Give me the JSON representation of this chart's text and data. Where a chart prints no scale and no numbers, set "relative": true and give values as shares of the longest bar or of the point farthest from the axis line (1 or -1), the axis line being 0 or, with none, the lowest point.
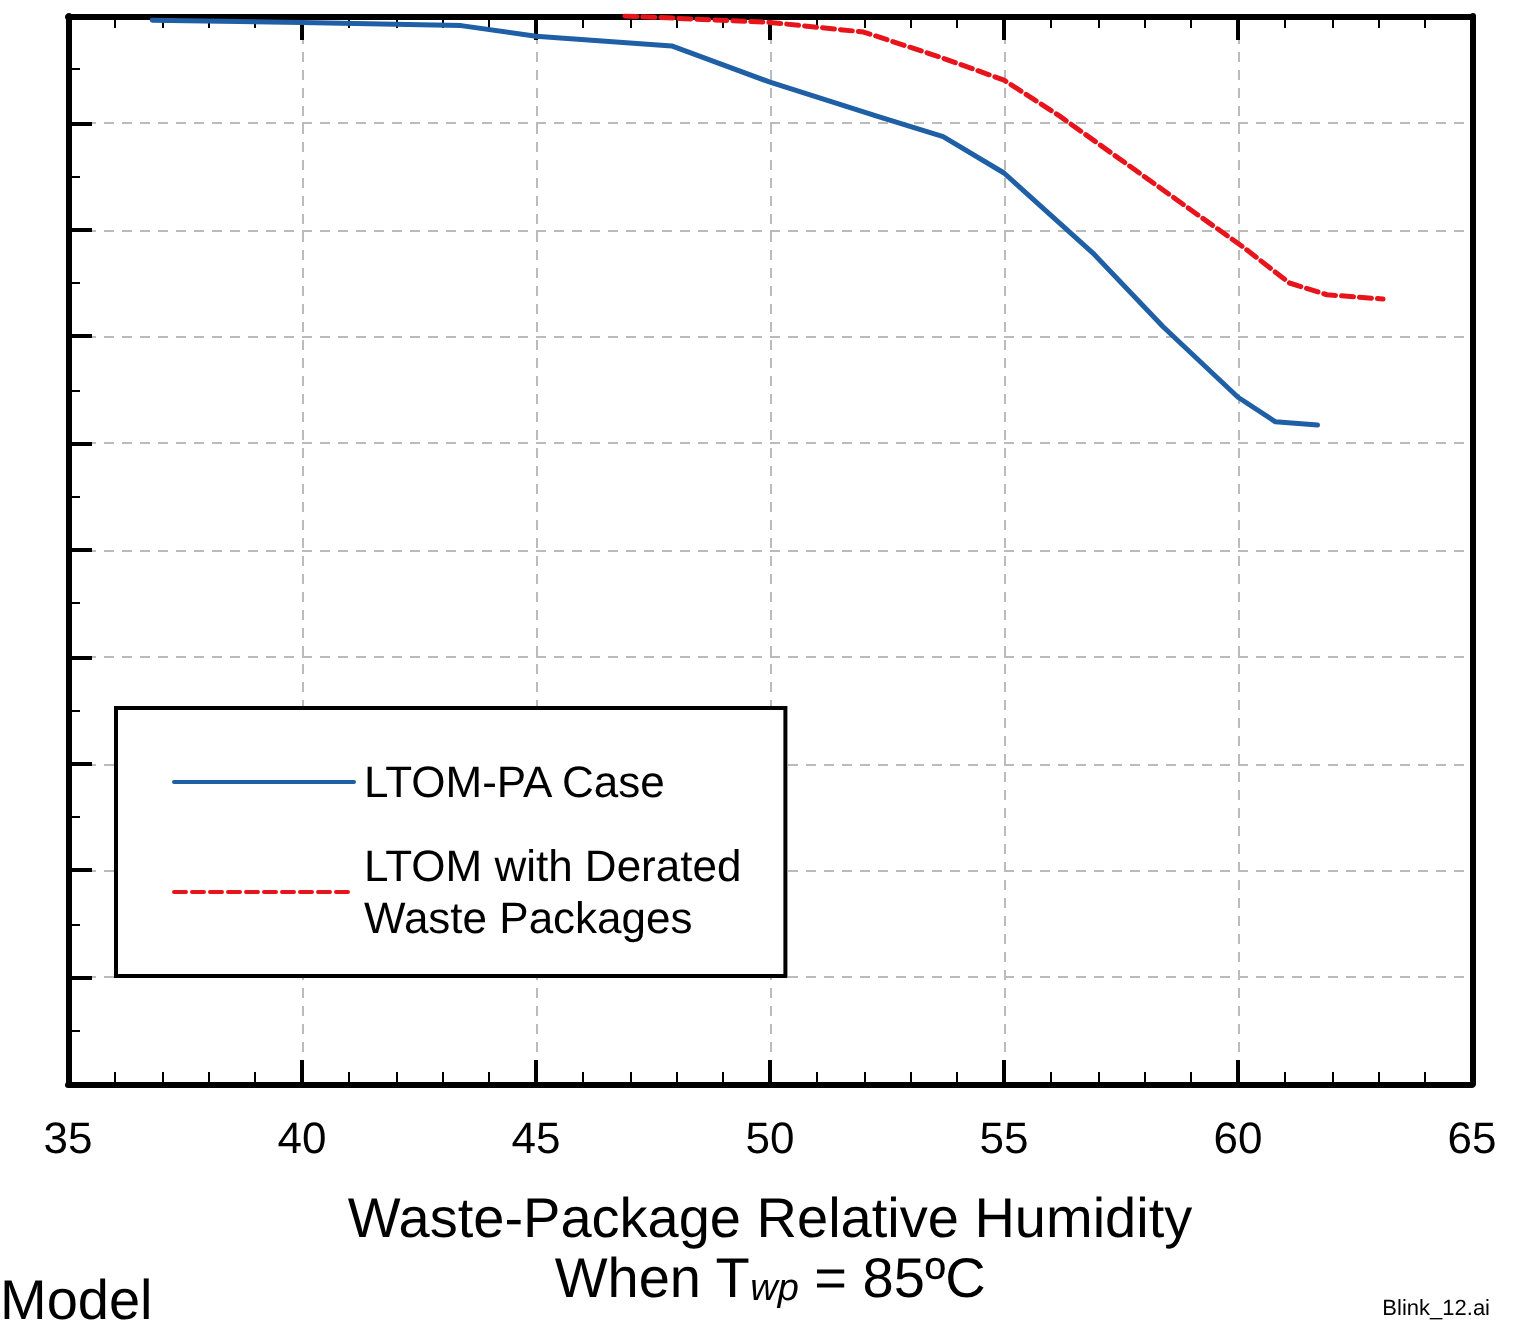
{
  "chart_data": {
    "type": "line",
    "relative": true,
    "xlabel": "Waste-Package Relative Humidity\nWhen T$_{wp}$ = 85ºC",
    "annotations": [
      "Model",
      "Blink_12.ai"
    ],
    "xlim": [
      35,
      65
    ],
    "xticks": [
      35,
      40,
      45,
      50,
      55,
      60,
      65
    ],
    "tick_labels": "x",
    "grid": true,
    "legend": "bottom left",
    "marker": "none",
    "series": [
      {
        "name": "LTOM-PA Case",
        "color": "#1f5fa6",
        "line_style": "solid",
        "x": [
          36.8,
          40,
          43.4,
          45,
          47.9,
          50,
          52.3,
          53.7,
          55,
          56.9,
          58.4,
          60,
          60.8,
          61.7
        ],
        "values": [
          0.996,
          0.994,
          0.991,
          0.981,
          0.972,
          0.938,
          0.906,
          0.887,
          0.853,
          0.778,
          0.709,
          0.643,
          0.62,
          0.617
        ]
      },
      {
        "name": "LTOM with Derated\nWaste Packages",
        "color": "#e8141c",
        "line_style": "dashed",
        "x": [
          46.9,
          50,
          52,
          53.6,
          55,
          56.2,
          57.7,
          59.2,
          60.1,
          61.1,
          61.9,
          63.1
        ],
        "values": [
          1,
          0.994,
          0.985,
          0.962,
          0.94,
          0.906,
          0.859,
          0.812,
          0.784,
          0.75,
          0.739,
          0.735
        ]
      }
    ]
  }
}
